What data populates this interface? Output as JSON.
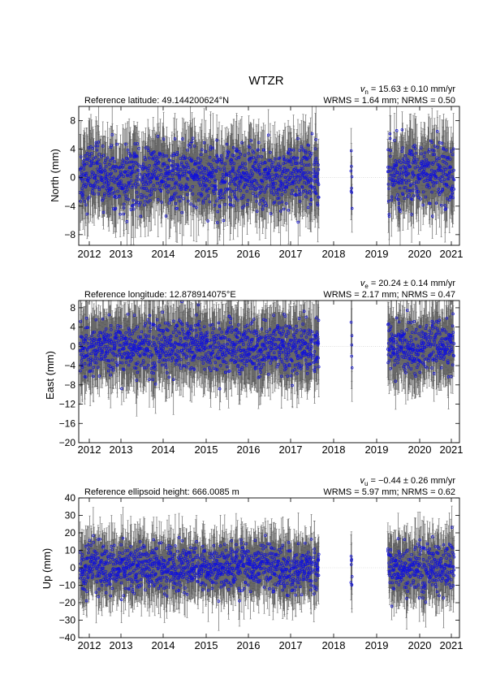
{
  "title": "WTZR",
  "colors": {
    "errorbar": "#4d4d4d",
    "point": "#1010dd",
    "zero_line": "#c8c8c8"
  },
  "x_ticks": [
    "2012",
    "2013",
    "2014",
    "2015",
    "2016",
    "2017",
    "2018",
    "2019",
    "2020",
    "2021"
  ],
  "chart_data": [
    {
      "type": "scatter",
      "title": "",
      "xlabel": "",
      "ylabel": "North (mm)",
      "ylim": [
        -9.5,
        10
      ],
      "yticks": [
        8,
        4,
        0,
        -4,
        -8
      ],
      "ytick_labels": [
        "8",
        "4",
        "0",
        "−4",
        "−8"
      ],
      "xlim": [
        2011.85,
        2021.25
      ],
      "info_left": "Reference latitude: 49.144200624°N",
      "info_vel_symbol": "v",
      "info_vel_sub": "n",
      "info_vel_text": " = 15.63 ± 0.10 mm/yr",
      "info_rms": "WRMS = 1.64 mm; NRMS = 0.50",
      "series": [
        {
          "noise_sd": 2.2,
          "err": 3.8,
          "offset": 0.2
        }
      ]
    },
    {
      "type": "scatter",
      "title": "",
      "xlabel": "",
      "ylabel": "East (mm)",
      "ylim": [
        -20,
        9.5
      ],
      "yticks": [
        8,
        4,
        0,
        -4,
        -8,
        -12,
        -16,
        -20
      ],
      "ytick_labels": [
        "8",
        "4",
        "0",
        "−4",
        "−8",
        "−12",
        "−16",
        "−20"
      ],
      "xlim": [
        2011.85,
        2021.25
      ],
      "info_left": "Reference longitude: 12.878914075°E",
      "info_vel_symbol": "v",
      "info_vel_sub": "e",
      "info_vel_text": " = 20.24 ± 0.14 mm/yr",
      "info_rms": "WRMS = 2.17 mm; NRMS = 0.47",
      "series": [
        {
          "noise_sd": 2.6,
          "err": 5.5,
          "offset": 0.0
        }
      ]
    },
    {
      "type": "scatter",
      "title": "",
      "xlabel": "",
      "ylabel": "Up (mm)",
      "ylim": [
        -40,
        40
      ],
      "yticks": [
        40,
        30,
        20,
        10,
        0,
        -10,
        -20,
        -30,
        -40
      ],
      "ytick_labels": [
        "40",
        "30",
        "20",
        "10",
        "0",
        "−10",
        "−20",
        "−30",
        "−40"
      ],
      "xlim": [
        2011.85,
        2021.25
      ],
      "info_left": "Reference ellipsoid height: 666.0085 m",
      "info_vel_symbol": "v",
      "info_vel_sub": "u",
      "info_vel_text": " = −0.44 ± 0.26 mm/yr",
      "info_rms": "WRMS = 5.97 mm; NRMS = 0.62",
      "series": [
        {
          "noise_sd": 6.5,
          "err": 13,
          "offset": 0.0
        }
      ]
    }
  ]
}
